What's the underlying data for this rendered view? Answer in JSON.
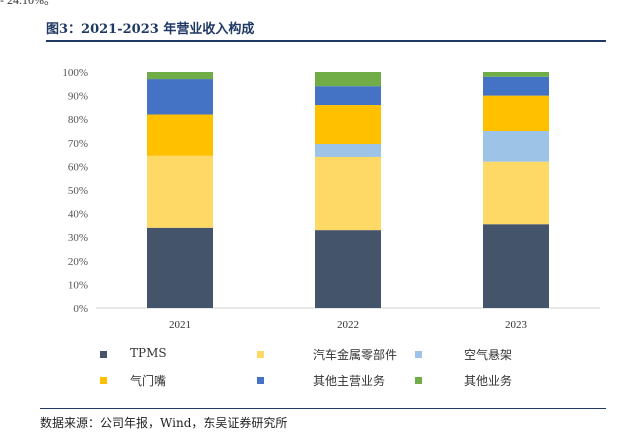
{
  "top_fragment": "- 24.10%。",
  "figure_title": "图3：2021-2023 年营业收入构成",
  "source_note": "数据来源：公司年报，Wind，东吴证券研究所",
  "chart_data": {
    "type": "bar",
    "stacked": true,
    "title": "",
    "xlabel": "",
    "ylabel": "",
    "categories": [
      "2021",
      "2022",
      "2023"
    ],
    "ylim": [
      0,
      100
    ],
    "yticks": [
      "0%",
      "10%",
      "20%",
      "30%",
      "40%",
      "50%",
      "60%",
      "70%",
      "80%",
      "90%",
      "100%"
    ],
    "grid": false,
    "legend_position": "bottom",
    "series": [
      {
        "name": "TPMS",
        "color": "#44546a",
        "values": [
          34,
          33,
          35.5
        ]
      },
      {
        "name": "汽车金属零部件",
        "color": "#ffd966",
        "values": [
          30.5,
          31,
          26.5
        ]
      },
      {
        "name": "空气悬架",
        "color": "#9dc3e6",
        "values": [
          0,
          5.5,
          13
        ]
      },
      {
        "name": "气门嘴",
        "color": "#ffc000",
        "values": [
          17.5,
          16.5,
          15
        ]
      },
      {
        "name": "其他主营业务",
        "color": "#4472c4",
        "values": [
          15,
          8,
          8
        ]
      },
      {
        "name": "其他业务",
        "color": "#70ad47",
        "values": [
          3,
          6,
          2
        ]
      }
    ]
  }
}
